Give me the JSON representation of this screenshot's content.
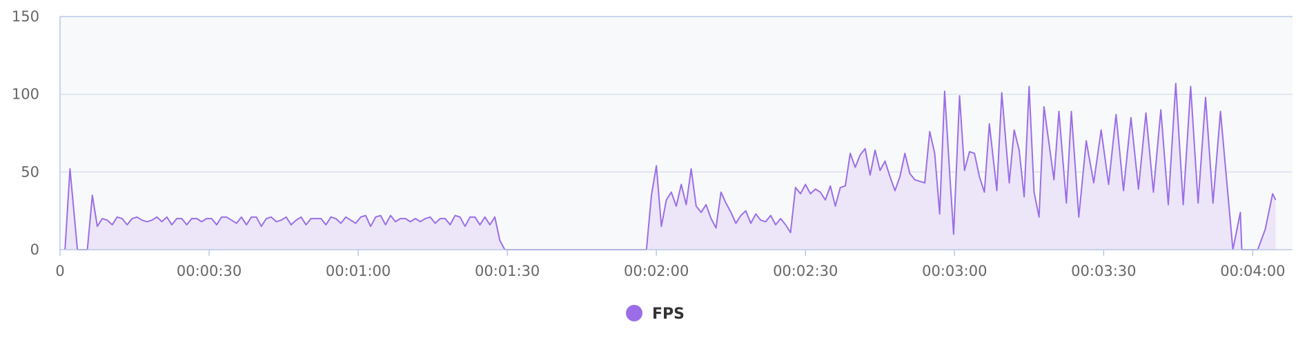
{
  "chart_data": {
    "type": "area",
    "title": "",
    "xlabel": "",
    "ylabel": "",
    "x_unit": "seconds (elapsed)",
    "xlim": [
      0,
      248
    ],
    "ylim": [
      0,
      150
    ],
    "x_ticks": [
      0,
      30,
      60,
      90,
      120,
      150,
      180,
      210,
      240
    ],
    "x_tick_labels": [
      "0",
      "00:00:30",
      "00:01:00",
      "00:01:30",
      "00:02:00",
      "00:02:30",
      "00:03:00",
      "00:03:30",
      "00:04:00"
    ],
    "y_ticks": [
      0,
      50,
      100,
      150
    ],
    "y_tick_labels": [
      "0",
      "50",
      "100",
      "150"
    ],
    "grid": "horizontal",
    "legend_position": "bottom-center",
    "colors": {
      "line": "#9b6ee8",
      "fill": "#ece6f8",
      "plot_bg": "#f8f9fb",
      "grid": "#d7dfea",
      "axis": "#b8c8e8",
      "legend_marker": "#9b6ee8"
    },
    "series": [
      {
        "name": "FPS",
        "points": [
          [
            1,
            0
          ],
          [
            2,
            52
          ],
          [
            3.5,
            0
          ],
          [
            5.5,
            0
          ],
          [
            6.5,
            35
          ],
          [
            7.5,
            15
          ],
          [
            8.5,
            20
          ],
          [
            9.5,
            19
          ],
          [
            10.5,
            16
          ],
          [
            11.5,
            21
          ],
          [
            12.5,
            20
          ],
          [
            13.5,
            16
          ],
          [
            14.5,
            20
          ],
          [
            15.5,
            21
          ],
          [
            16.5,
            19
          ],
          [
            17.5,
            18
          ],
          [
            18.5,
            19
          ],
          [
            19.5,
            21
          ],
          [
            20.5,
            18
          ],
          [
            21.5,
            21
          ],
          [
            22.5,
            16
          ],
          [
            23.5,
            20
          ],
          [
            24.5,
            20
          ],
          [
            25.5,
            16
          ],
          [
            26.5,
            20
          ],
          [
            27.5,
            20
          ],
          [
            28.5,
            18
          ],
          [
            29.5,
            20
          ],
          [
            30.5,
            20
          ],
          [
            31.5,
            16
          ],
          [
            32.5,
            21
          ],
          [
            33.5,
            21
          ],
          [
            34.5,
            19
          ],
          [
            35.5,
            17
          ],
          [
            36.5,
            21
          ],
          [
            37.5,
            16
          ],
          [
            38.5,
            21
          ],
          [
            39.5,
            21
          ],
          [
            40.5,
            15
          ],
          [
            41.5,
            20
          ],
          [
            42.5,
            21
          ],
          [
            43.5,
            18
          ],
          [
            44.5,
            19
          ],
          [
            45.5,
            21
          ],
          [
            46.5,
            16
          ],
          [
            47.5,
            19
          ],
          [
            48.5,
            21
          ],
          [
            49.5,
            16
          ],
          [
            50.5,
            20
          ],
          [
            51.5,
            20
          ],
          [
            52.5,
            20
          ],
          [
            53.5,
            16
          ],
          [
            54.5,
            21
          ],
          [
            55.5,
            20
          ],
          [
            56.5,
            17
          ],
          [
            57.5,
            21
          ],
          [
            58.5,
            19
          ],
          [
            59.5,
            17
          ],
          [
            60.5,
            21
          ],
          [
            61.5,
            22
          ],
          [
            62.5,
            15
          ],
          [
            63.5,
            21
          ],
          [
            64.5,
            22
          ],
          [
            65.5,
            16
          ],
          [
            66.5,
            22
          ],
          [
            67.5,
            18
          ],
          [
            68.5,
            20
          ],
          [
            69.5,
            20
          ],
          [
            70.5,
            18
          ],
          [
            71.5,
            20
          ],
          [
            72.5,
            18
          ],
          [
            73.5,
            20
          ],
          [
            74.5,
            21
          ],
          [
            75.5,
            17
          ],
          [
            76.5,
            20
          ],
          [
            77.5,
            20
          ],
          [
            78.5,
            16
          ],
          [
            79.5,
            22
          ],
          [
            80.5,
            21
          ],
          [
            81.5,
            15
          ],
          [
            82.5,
            21
          ],
          [
            83.5,
            21
          ],
          [
            84.5,
            16
          ],
          [
            85.5,
            21
          ],
          [
            86.5,
            16
          ],
          [
            87.5,
            21
          ],
          [
            88.5,
            6
          ],
          [
            89.5,
            0
          ],
          [
            118,
            0
          ],
          [
            119,
            35
          ],
          [
            120,
            54
          ],
          [
            121,
            15
          ],
          [
            122,
            32
          ],
          [
            123,
            37
          ],
          [
            124,
            28
          ],
          [
            125,
            42
          ],
          [
            126,
            29
          ],
          [
            127,
            52
          ],
          [
            128,
            28
          ],
          [
            129,
            24
          ],
          [
            130,
            29
          ],
          [
            131,
            20
          ],
          [
            132,
            14
          ],
          [
            133,
            37
          ],
          [
            134,
            30
          ],
          [
            135,
            24
          ],
          [
            136,
            17
          ],
          [
            137,
            22
          ],
          [
            138,
            25
          ],
          [
            139,
            17
          ],
          [
            140,
            23
          ],
          [
            141,
            19
          ],
          [
            142,
            18
          ],
          [
            143,
            22
          ],
          [
            144,
            16
          ],
          [
            145,
            20
          ],
          [
            146,
            16
          ],
          [
            147,
            11
          ],
          [
            148,
            40
          ],
          [
            149,
            36
          ],
          [
            150,
            42
          ],
          [
            151,
            36
          ],
          [
            152,
            39
          ],
          [
            153,
            37
          ],
          [
            154,
            32
          ],
          [
            155,
            41
          ],
          [
            156,
            28
          ],
          [
            157,
            40
          ],
          [
            158,
            41
          ],
          [
            159,
            62
          ],
          [
            160,
            53
          ],
          [
            161,
            61
          ],
          [
            162,
            65
          ],
          [
            163,
            48
          ],
          [
            164,
            64
          ],
          [
            165,
            51
          ],
          [
            166,
            57
          ],
          [
            167,
            47
          ],
          [
            168,
            38
          ],
          [
            169,
            47
          ],
          [
            170,
            62
          ],
          [
            171,
            49
          ],
          [
            172,
            45
          ],
          [
            173,
            44
          ],
          [
            174,
            43
          ],
          [
            175,
            76
          ],
          [
            176,
            62
          ],
          [
            177,
            23
          ],
          [
            178,
            102
          ],
          [
            179,
            50
          ],
          [
            179.8,
            10
          ],
          [
            181,
            99
          ],
          [
            182,
            51
          ],
          [
            183,
            63
          ],
          [
            184,
            62
          ],
          [
            185,
            47
          ],
          [
            186,
            37
          ],
          [
            187,
            81
          ],
          [
            188.5,
            38
          ],
          [
            189.5,
            101
          ],
          [
            191,
            43
          ],
          [
            192,
            77
          ],
          [
            193,
            64
          ],
          [
            194,
            34
          ],
          [
            195,
            105
          ],
          [
            196,
            37
          ],
          [
            197,
            21
          ],
          [
            198,
            92
          ],
          [
            200,
            45
          ],
          [
            201,
            89
          ],
          [
            202.5,
            30
          ],
          [
            203.5,
            89
          ],
          [
            205,
            21
          ],
          [
            206.5,
            70
          ],
          [
            208,
            43
          ],
          [
            209.5,
            77
          ],
          [
            211,
            42
          ],
          [
            212.5,
            87
          ],
          [
            214,
            38
          ],
          [
            215.5,
            85
          ],
          [
            217,
            39
          ],
          [
            218.5,
            88
          ],
          [
            220,
            37
          ],
          [
            221.5,
            90
          ],
          [
            223,
            29
          ],
          [
            224.5,
            107
          ],
          [
            226,
            29
          ],
          [
            227.5,
            105
          ],
          [
            229,
            30
          ],
          [
            230.5,
            98
          ],
          [
            232,
            30
          ],
          [
            233.5,
            89
          ],
          [
            236,
            0
          ],
          [
            237.5,
            24
          ],
          [
            237.8,
            0
          ],
          [
            241,
            0
          ],
          [
            242.5,
            13
          ],
          [
            244,
            36
          ],
          [
            244.6,
            32
          ]
        ]
      }
    ]
  },
  "legend": {
    "items": [
      {
        "label": "FPS",
        "color": "#9b6ee8"
      }
    ]
  }
}
